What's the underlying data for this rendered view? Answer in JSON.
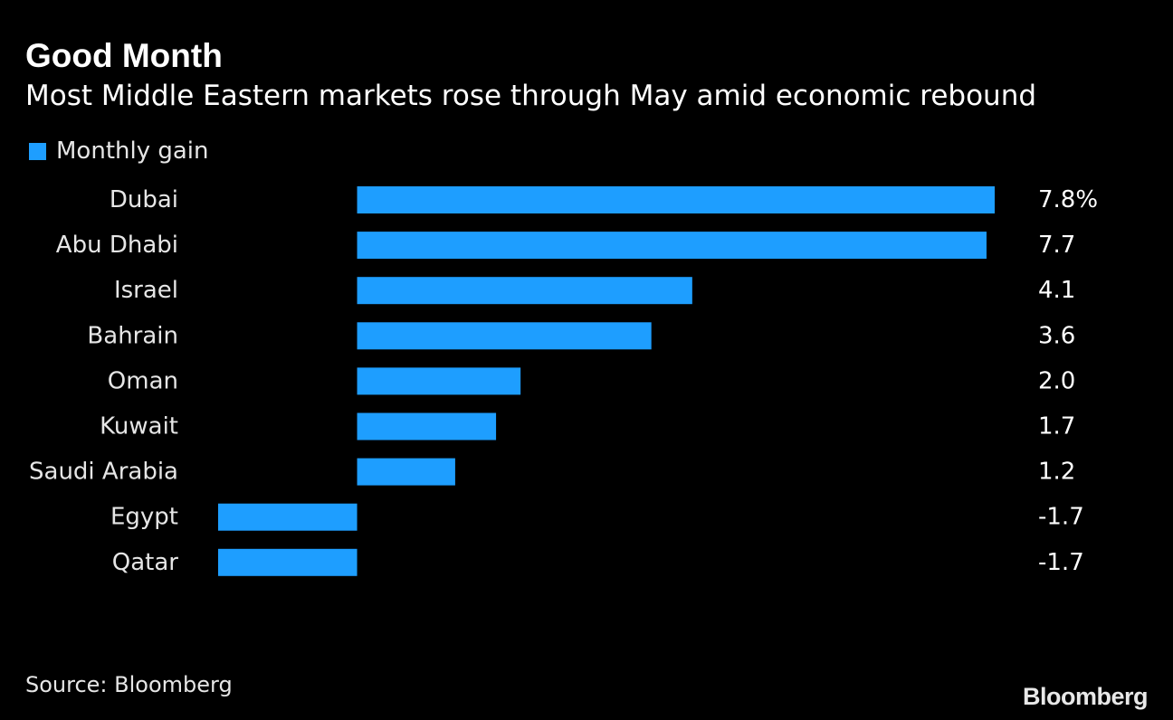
{
  "chart_data": {
    "type": "bar",
    "orientation": "horizontal",
    "title": "Good Month",
    "subtitle": "Most Middle Eastern markets rose through May amid economic rebound",
    "legend": [
      "Monthly gain"
    ],
    "categories": [
      "Dubai",
      "Abu Dhabi",
      "Israel",
      "Bahrain",
      "Oman",
      "Kuwait",
      "Saudi Arabia",
      "Egypt",
      "Qatar"
    ],
    "values": [
      7.8,
      7.7,
      4.1,
      3.6,
      2.0,
      1.7,
      1.2,
      -1.7,
      -1.7
    ],
    "value_labels": [
      "7.8%",
      "7.7",
      "4.1",
      "3.6",
      "2.0",
      "1.7",
      "1.2",
      "-1.7",
      "-1.7"
    ],
    "xlim": [
      -1.7,
      7.8
    ],
    "xlabel": "",
    "ylabel": "",
    "grid": false,
    "bar_color": "#1e9eff",
    "source": "Source: Bloomberg"
  },
  "brand": {
    "logo_text": "Bloomberg"
  },
  "colors": {
    "background": "#000000",
    "text": "#ffffff",
    "muted_text": "#e6e6e6"
  }
}
